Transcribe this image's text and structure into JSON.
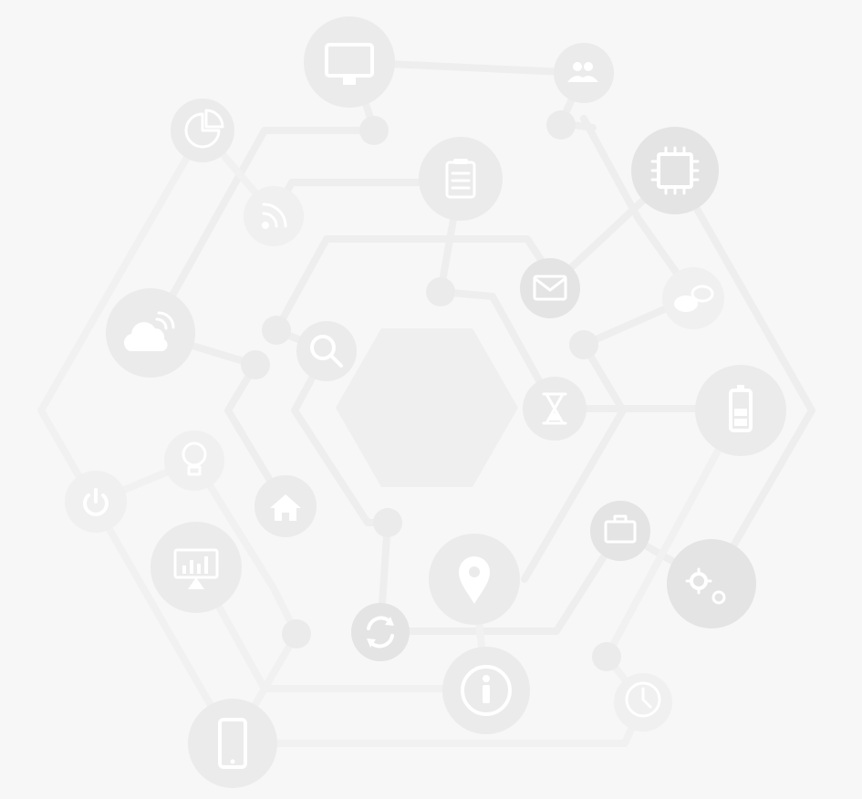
{
  "illustration": {
    "subject": "tech-network-hexagon",
    "palette": {
      "background": "#f7f7f7",
      "lines": "#eeeeee",
      "nodes": "#ebebeb",
      "glyphs": "#ffffff"
    },
    "icons": [
      "monitor-icon",
      "users-icon",
      "pie-chart-icon",
      "rss-icon",
      "clipboard-icon",
      "chip-icon",
      "envelope-icon",
      "chat-icon",
      "cloud-icon",
      "search-icon",
      "hourglass-icon",
      "battery-icon",
      "lightbulb-icon",
      "power-icon",
      "home-icon",
      "dashboard-icon",
      "map-pin-icon",
      "briefcase-icon",
      "gears-icon",
      "refresh-icon",
      "info-icon",
      "clock-icon",
      "smartphone-icon"
    ]
  }
}
